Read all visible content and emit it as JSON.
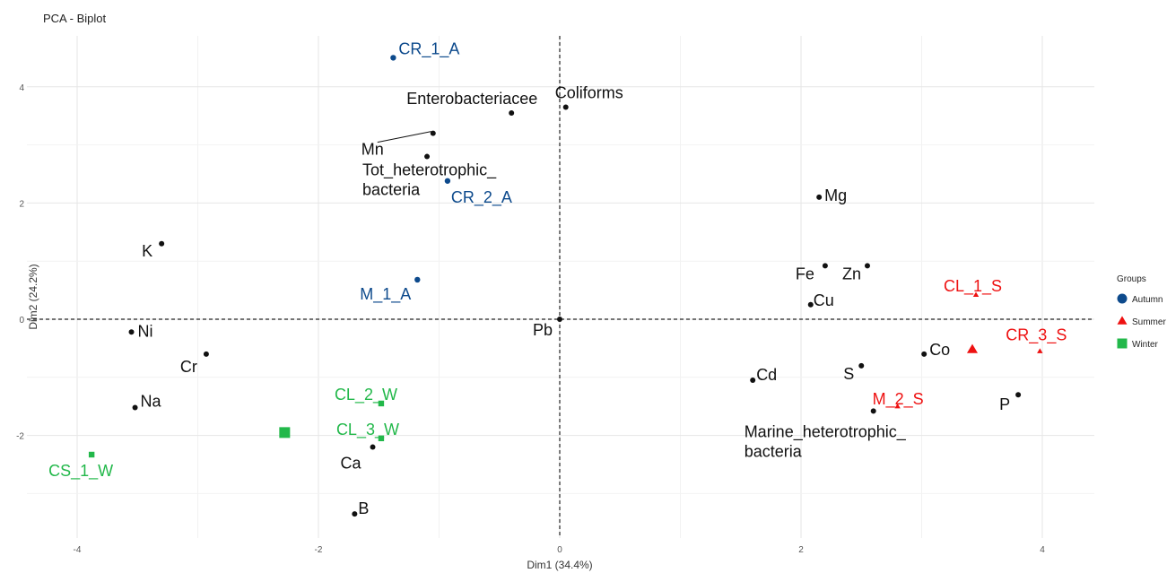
{
  "chart_data": {
    "type": "scatter",
    "title": "PCA - Biplot",
    "xlabel": "Dim1 (34.4%)",
    "ylabel": "Dim2 (24.2%)",
    "xlim": [
      -4.4,
      4.4
    ],
    "ylim": [
      -3.8,
      4.9
    ],
    "x_ticks": [
      -4,
      -2,
      0,
      2,
      4
    ],
    "y_ticks": [
      -2,
      0,
      2,
      4
    ],
    "grid": true,
    "reference_lines": {
      "x": 0,
      "y": 0,
      "style": "dashed"
    },
    "legend": {
      "title": "Groups",
      "position": "right",
      "entries": [
        {
          "name": "Autumn",
          "color": "#0d4a8c",
          "shape": "circle"
        },
        {
          "name": "Summer",
          "color": "#ee1111",
          "shape": "triangle"
        },
        {
          "name": "Winter",
          "color": "#22b84a",
          "shape": "square"
        }
      ]
    },
    "variables": [
      {
        "label": "Coliforms",
        "x": 0.05,
        "y": 3.65
      },
      {
        "label": "Enterobacteriacee",
        "x": -0.4,
        "y": 3.55
      },
      {
        "label": "Mn",
        "x": -1.05,
        "y": 3.2
      },
      {
        "label": "Tot_heterotrophic_ bacteria",
        "x": -1.1,
        "y": 2.8
      },
      {
        "label": "Mg",
        "x": 2.15,
        "y": 2.1
      },
      {
        "label": "K",
        "x": -3.3,
        "y": 1.3
      },
      {
        "label": "Fe",
        "x": 2.2,
        "y": 0.92
      },
      {
        "label": "Zn",
        "x": 2.55,
        "y": 0.92
      },
      {
        "label": "Cu",
        "x": 2.08,
        "y": 0.25
      },
      {
        "label": "Pb",
        "x": 0.0,
        "y": 0.0
      },
      {
        "label": "Ni",
        "x": -3.55,
        "y": -0.22
      },
      {
        "label": "Cr",
        "x": -2.93,
        "y": -0.6
      },
      {
        "label": "Co",
        "x": 3.02,
        "y": -0.6
      },
      {
        "label": "S",
        "x": 2.5,
        "y": -0.8
      },
      {
        "label": "Cd",
        "x": 1.6,
        "y": -1.05
      },
      {
        "label": "P",
        "x": 3.8,
        "y": -1.3
      },
      {
        "label": "Na",
        "x": -3.52,
        "y": -1.52
      },
      {
        "label": "Marine_heterotrophic_ bacteria",
        "x": 2.6,
        "y": -1.58
      },
      {
        "label": "Ca",
        "x": -1.55,
        "y": -2.2
      },
      {
        "label": "B",
        "x": -1.7,
        "y": -3.35
      }
    ],
    "series": [
      {
        "name": "Autumn",
        "points": [
          {
            "label": "CR_1_A",
            "x": -1.38,
            "y": 4.5
          },
          {
            "label": "CR_2_A",
            "x": -0.93,
            "y": 2.38
          },
          {
            "label": "M_1_A",
            "x": -1.18,
            "y": 0.68
          }
        ],
        "centroid": null
      },
      {
        "name": "Summer",
        "points": [
          {
            "label": "CL_1_S",
            "x": 3.45,
            "y": 0.42
          },
          {
            "label": "CR_3_S",
            "x": 3.98,
            "y": -0.55
          },
          {
            "label": "M_2_S",
            "x": 2.8,
            "y": -1.5
          }
        ],
        "centroid": {
          "x": 3.42,
          "y": -0.52
        }
      },
      {
        "name": "Winter",
        "points": [
          {
            "label": "CL_2_W",
            "x": -1.48,
            "y": -1.45
          },
          {
            "label": "CL_3_W",
            "x": -1.48,
            "y": -2.05
          },
          {
            "label": "CS_1_W",
            "x": -3.88,
            "y": -2.33
          }
        ],
        "centroid": {
          "x": -2.28,
          "y": -1.95
        }
      }
    ]
  }
}
